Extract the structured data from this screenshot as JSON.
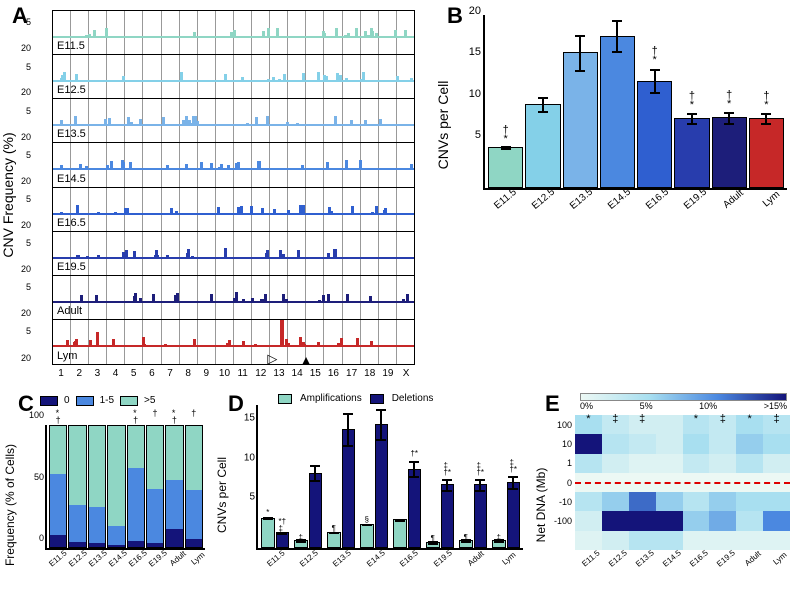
{
  "categories": [
    "E11.5",
    "E12.5",
    "E13.5",
    "E14.5",
    "E16.5",
    "E19.5",
    "Adult",
    "Lym"
  ],
  "palette": {
    "e11": "#8fd6c4",
    "e12": "#84d0e8",
    "e13": "#7ab3e8",
    "e14": "#4b88e0",
    "e16": "#2f5fd0",
    "e19": "#283dad",
    "adult": "#1d1e7a",
    "lym": "#c62828"
  },
  "A": {
    "label": "A",
    "ylabel": "CNV Frequency (%)",
    "yticks": [
      "5",
      "20"
    ],
    "chromosomes": [
      "1",
      "2",
      "3",
      "4",
      "5",
      "6",
      "7",
      "8",
      "9",
      "10",
      "11",
      "12",
      "13",
      "14",
      "15",
      "16",
      "17",
      "18",
      "19",
      "X"
    ],
    "tracks": [
      {
        "name": "E11.5",
        "color": "#8fd6c4"
      },
      {
        "name": "E12.5",
        "color": "#84d0e8"
      },
      {
        "name": "E13.5",
        "color": "#7ab3e8"
      },
      {
        "name": "E14.5",
        "color": "#4b88e0"
      },
      {
        "name": "E16.5",
        "color": "#2f5fd0"
      },
      {
        "name": "E19.5",
        "color": "#283dad"
      },
      {
        "name": "Adult",
        "color": "#1d1e7a"
      },
      {
        "name": "Lym",
        "color": "#c62828"
      }
    ],
    "arrow_open_pct": 61,
    "arrow_filled_pct": 70
  },
  "B": {
    "label": "B",
    "ylabel": "CNVs per Cell",
    "ymax": 21,
    "yticks": [
      5,
      10,
      15,
      20
    ],
    "bars": [
      {
        "v": 5.0,
        "e": 1.2,
        "c": "#8fd6c4",
        "sym": "†*"
      },
      {
        "v": 10.2,
        "e": 2.0,
        "c": "#84d0e8",
        "sym": ""
      },
      {
        "v": 16.5,
        "e": 2.9,
        "c": "#7ab3e8",
        "sym": ""
      },
      {
        "v": 18.5,
        "e": 2.3,
        "c": "#4b88e0",
        "sym": ""
      },
      {
        "v": 13.0,
        "e": 2.5,
        "c": "#2f5fd0",
        "sym": "†*"
      },
      {
        "v": 8.5,
        "e": 1.9,
        "c": "#283dad",
        "sym": "†*"
      },
      {
        "v": 8.6,
        "e": 2.0,
        "c": "#1d1e7a",
        "sym": "†*"
      },
      {
        "v": 8.5,
        "e": 1.9,
        "c": "#c62828",
        "sym": "†*"
      }
    ]
  },
  "C": {
    "label": "C",
    "ylabel": "Frequency (% of Cells)",
    "legend": [
      "0",
      "1-5",
      ">5"
    ],
    "legend_colors": [
      "#14147a",
      "#4b88e0",
      "#8fd6c4"
    ],
    "yticks": [
      0,
      50,
      100
    ],
    "bars": [
      {
        "v": [
          10,
          50,
          40
        ],
        "sym": "*†"
      },
      {
        "v": [
          4,
          31,
          65
        ],
        "sym": ""
      },
      {
        "v": [
          3,
          30,
          67
        ],
        "sym": ""
      },
      {
        "v": [
          2,
          15,
          83
        ],
        "sym": ""
      },
      {
        "v": [
          5,
          60,
          35
        ],
        "sym": "*†"
      },
      {
        "v": [
          3,
          45,
          52
        ],
        "sym": "†"
      },
      {
        "v": [
          15,
          40,
          45
        ],
        "sym": "*†"
      },
      {
        "v": [
          7,
          40,
          53
        ],
        "sym": "†"
      }
    ]
  },
  "D": {
    "label": "D",
    "ylabel": "CNVs per Cell",
    "legend": [
      "Amplifications",
      "Deletions"
    ],
    "legend_colors": [
      "#8fd6c4",
      "#14147a"
    ],
    "ymax": 18,
    "yticks": [
      5,
      10,
      15
    ],
    "groups": [
      {
        "a": 3.8,
        "ae": 1.0,
        "as": "*",
        "d": 2.0,
        "de": 0.7,
        "ds": "*† ‡"
      },
      {
        "a": 1.0,
        "ae": 0.5,
        "as": "‡",
        "d": 9.5,
        "de": 2.0,
        "ds": ""
      },
      {
        "a": 2.0,
        "ae": 1.0,
        "as": "¶",
        "d": 15.0,
        "de": 2.6,
        "ds": ""
      },
      {
        "a": 3.0,
        "ae": 1.0,
        "as": "§",
        "d": 15.6,
        "de": 2.4,
        "ds": ""
      },
      {
        "a": 3.6,
        "ae": 1.2,
        "as": "",
        "d": 10.0,
        "de": 2.0,
        "ds": "†*"
      },
      {
        "a": 0.8,
        "ae": 0.4,
        "as": "¶",
        "d": 8.0,
        "de": 2.0,
        "ds": "‡ †*"
      },
      {
        "a": 1.0,
        "ae": 0.5,
        "as": "¶",
        "d": 8.0,
        "de": 2.0,
        "ds": "‡ †*"
      },
      {
        "a": 1.0,
        "ae": 0.5,
        "as": "‡",
        "d": 8.3,
        "de": 1.9,
        "ds": "‡ †*"
      }
    ]
  },
  "E": {
    "label": "E",
    "ylabel": "Net DNA (Mb)",
    "yticks": [
      "100",
      "10",
      "1",
      "0",
      "-10",
      "-100"
    ],
    "zero_row": 3,
    "legend": [
      "0%",
      "5%",
      "10%",
      ">15%"
    ],
    "gradient": [
      "#ecf8f4",
      "#a8dff0",
      "#4b88e0",
      "#14147a"
    ],
    "syms": [
      "*",
      "‡",
      "‡",
      "",
      "*",
      "‡",
      "*",
      "‡"
    ],
    "rows": 7,
    "cols": 8,
    "cells": [
      [
        0.05,
        0.03,
        0.02,
        0.02,
        0.04,
        0.03,
        0.05,
        0.04
      ],
      [
        0.18,
        0.04,
        0.03,
        0.02,
        0.05,
        0.03,
        0.06,
        0.05
      ],
      [
        0.04,
        0.02,
        0.01,
        0.01,
        0.03,
        0.02,
        0.04,
        0.02
      ],
      [
        0.0,
        0.0,
        0.0,
        0.0,
        0.0,
        0.0,
        0.0,
        0.0
      ],
      [
        0.04,
        0.06,
        0.12,
        0.06,
        0.04,
        0.06,
        0.05,
        0.05
      ],
      [
        0.02,
        0.18,
        0.2,
        0.18,
        0.06,
        0.08,
        0.04,
        0.1
      ],
      [
        0.01,
        0.02,
        0.04,
        0.04,
        0.01,
        0.01,
        0.01,
        0.01
      ]
    ]
  }
}
